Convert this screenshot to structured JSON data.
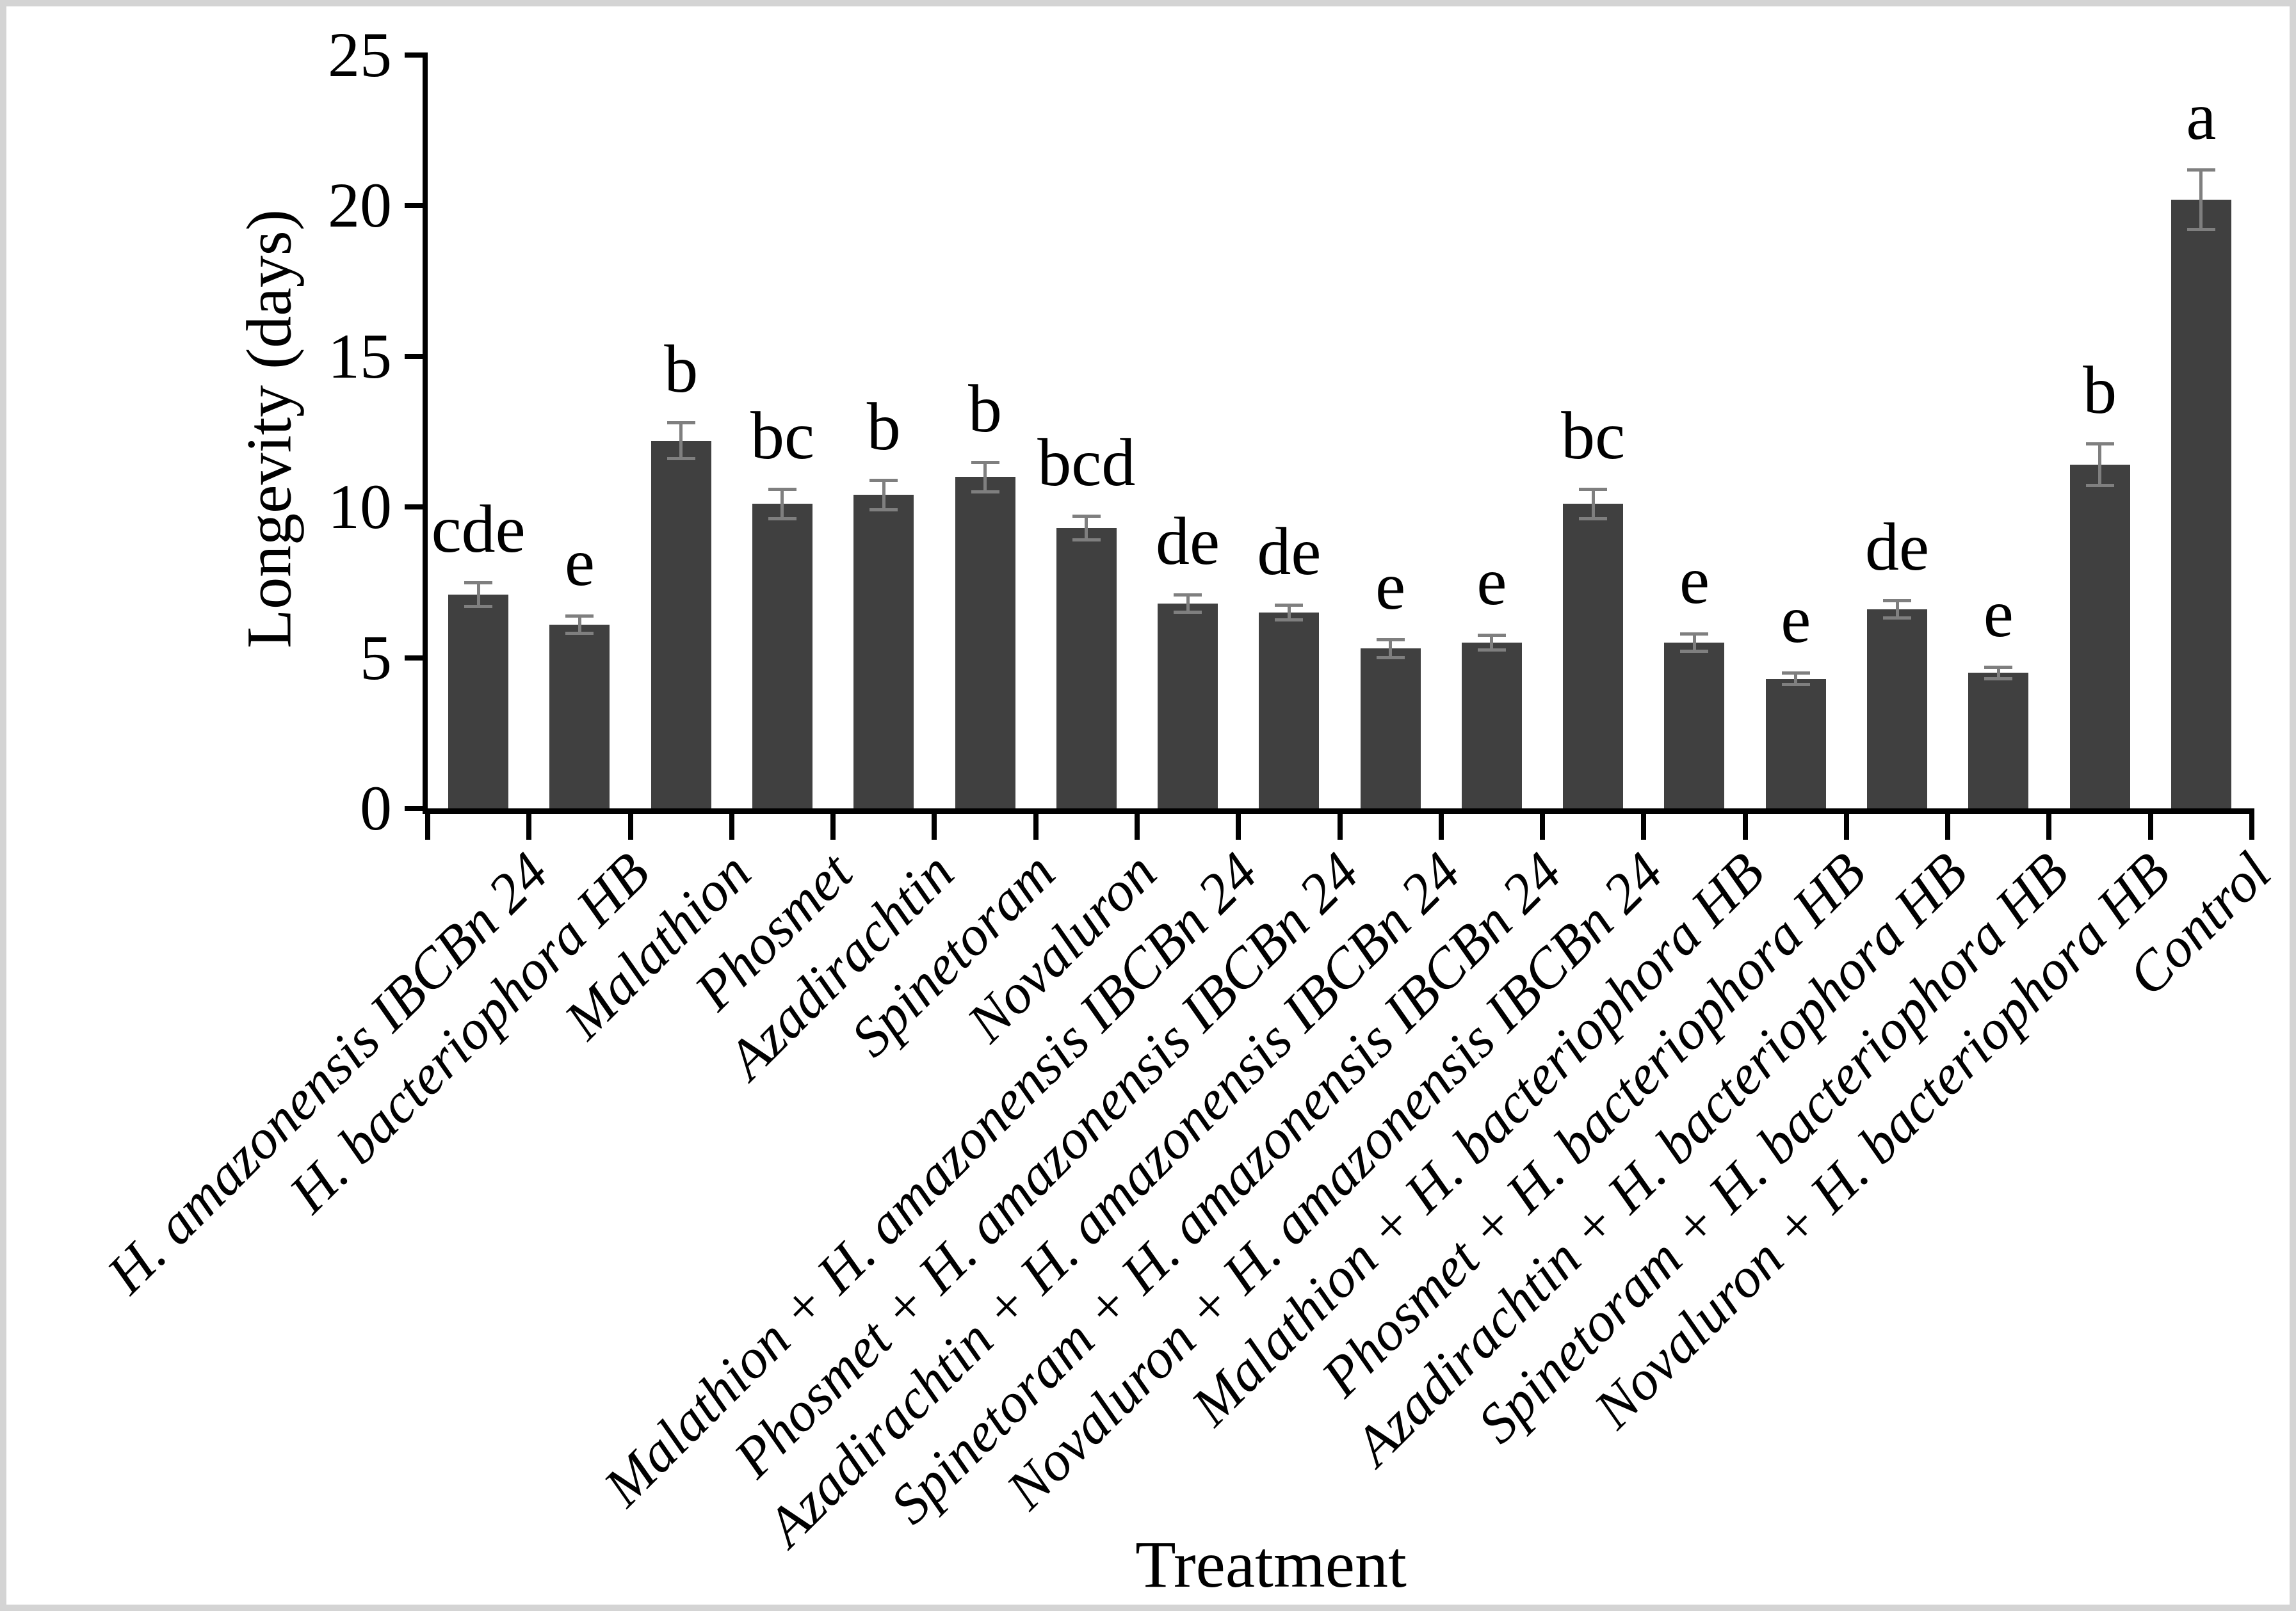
{
  "figure": {
    "background_color": "#ffffff",
    "frame_color": "#d4d4d4"
  },
  "chart_data": {
    "type": "bar",
    "title": "",
    "xlabel": "Treatment",
    "ylabel": "Longevity (days)",
    "ylim": [
      0,
      25
    ],
    "yticks": [
      0,
      5,
      10,
      15,
      20,
      25
    ],
    "grid": false,
    "legend": "none",
    "bar_color": "#404040",
    "error_bar_color": "#7f7f7f",
    "axis_color": "#000000",
    "categories": [
      "H. amazonensis IBCBn 24",
      "H. bacteriophora HB",
      "Malathion",
      "Phosmet",
      "Azadirachtin",
      "Spinetoram",
      "Novaluron",
      "Malathion + H. amazonensis IBCBn 24",
      "Phosmet + H. amazonensis IBCBn 24",
      "Azadirachtin + H. amazonensis IBCBn 24",
      "Spinetoram + H. amazonensis IBCBn 24",
      "Novaluron + H. amazonensis IBCBn 24",
      "Malathion + H. bacteriophora HB",
      "Phosmet + H. bacteriophora HB",
      "Azadirachtin + H. bacteriophora HB",
      "Spinetoram + H. bacteriophora HB",
      "Novaluron + H. bacteriophora HB",
      "Control"
    ],
    "values": [
      7.1,
      6.1,
      12.2,
      10.1,
      10.4,
      11.0,
      9.3,
      6.8,
      6.5,
      5.3,
      5.5,
      10.1,
      5.5,
      4.3,
      6.6,
      4.5,
      11.4,
      20.2
    ],
    "errors": [
      0.4,
      0.3,
      0.6,
      0.5,
      0.5,
      0.5,
      0.4,
      0.3,
      0.25,
      0.3,
      0.25,
      0.5,
      0.3,
      0.2,
      0.3,
      0.2,
      0.7,
      1.0
    ],
    "sig_letters": [
      "cde",
      "e",
      "b",
      "bc",
      "b",
      "b",
      "bcd",
      "de",
      "de",
      "e",
      "e",
      "bc",
      "e",
      "e",
      "de",
      "e",
      "b",
      "a"
    ]
  }
}
